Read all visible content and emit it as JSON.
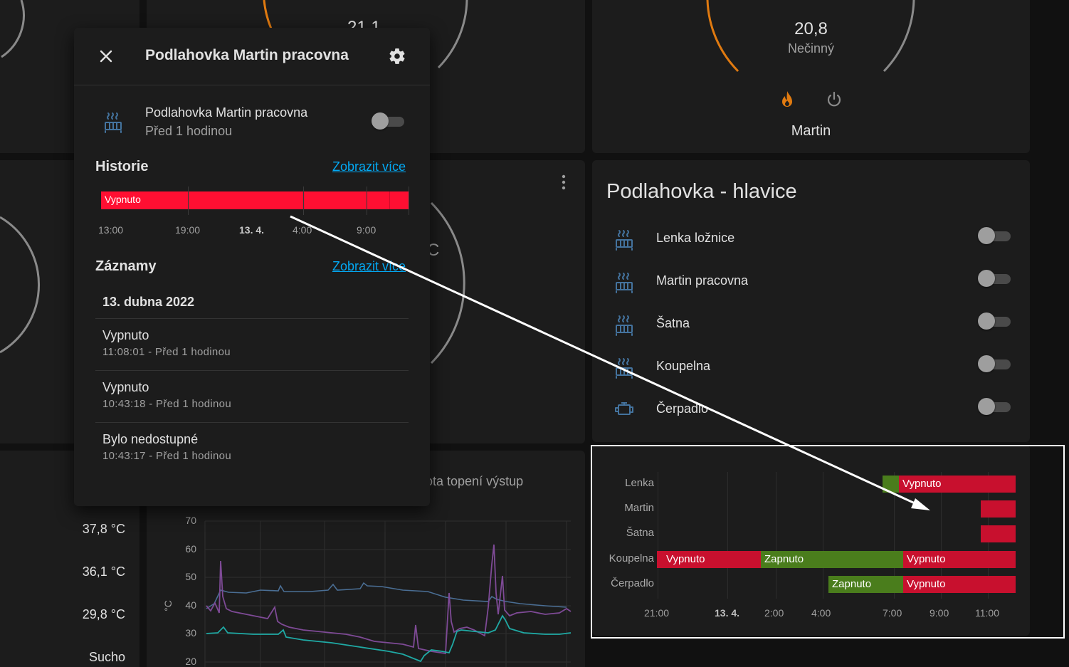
{
  "thermostat_martin": {
    "temperature": "20,8",
    "state": "Nečinný",
    "name": "Martin"
  },
  "thermostat_partial": {
    "temperature": "21,1"
  },
  "partial_text": {
    "unit_fragment": "C",
    "sensor_title": "ota topení výstup"
  },
  "hlavice": {
    "title": "Podlahovka - hlavice",
    "entities": [
      {
        "name": "Lenka ložnice",
        "icon": "radiator-icon",
        "state": "off"
      },
      {
        "name": "Martin pracovna",
        "icon": "radiator-icon",
        "state": "off"
      },
      {
        "name": "Šatna",
        "icon": "radiator-icon",
        "state": "off"
      },
      {
        "name": "Koupelna",
        "icon": "radiator-icon",
        "state": "off"
      },
      {
        "name": "Čerpadlo",
        "icon": "engine-icon",
        "state": "off"
      }
    ]
  },
  "sensors": {
    "values": [
      "37,8 °C",
      "36,1 °C",
      "29,8 °C",
      "Sucho"
    ]
  },
  "temp_chart": {
    "ylabel": "°C",
    "y_ticks": [
      "70",
      "60",
      "50",
      "40",
      "30",
      "20"
    ]
  },
  "dialog": {
    "title": "Podlahovka Martin pracovna",
    "entity_name": "Podlahovka Martin pracovna",
    "entity_time": "Před 1 hodinou",
    "history_heading": "Historie",
    "history_link": "Zobrazit více",
    "history_bar_label": "Vypnuto",
    "history_ticks": [
      "13:00",
      "19:00",
      "13. 4.",
      "4:00",
      "9:00"
    ],
    "log_heading": "Záznamy",
    "log_link": "Zobrazit více",
    "log_date": "13. dubna 2022",
    "log_entries": [
      {
        "state": "Vypnuto",
        "time": "11:08:01 - Před 1 hodinou"
      },
      {
        "state": "Vypnuto",
        "time": "10:43:18 - Před 1 hodinou"
      },
      {
        "state": "Bylo nedostupné",
        "time": "10:43:17 - Před 1 hodinou"
      }
    ]
  },
  "timeline": {
    "rows": [
      "Lenka",
      "Martin",
      "Šatna",
      "Koupelna",
      "Čerpadlo"
    ],
    "x_ticks": [
      "21:00",
      "13. 4.",
      "2:00",
      "4:00",
      "7:00",
      "9:00",
      "11:00"
    ],
    "labels": {
      "off": "Vypnuto",
      "on": "Zapnuto"
    },
    "colors": {
      "off": "#c8102e",
      "on": "#4a7d1c"
    }
  },
  "colors": {
    "accent_orange": "#e07a10",
    "link": "#03a9f4",
    "history_red": "#ff0f32"
  }
}
